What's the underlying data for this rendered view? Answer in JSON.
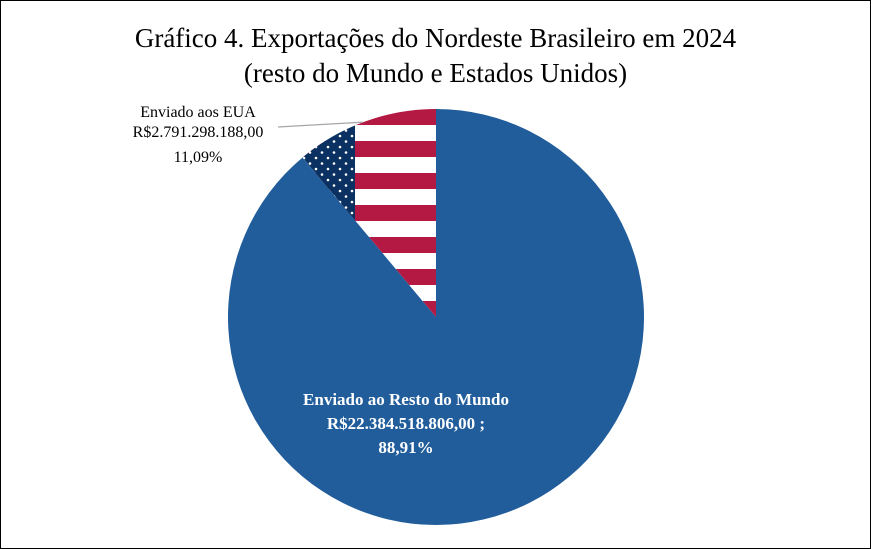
{
  "chart_data": {
    "type": "pie",
    "title": "Gráfico 4. Exportações do Nordeste Brasileiro em 2024",
    "subtitle": "(resto do Mundo e Estados Unidos)",
    "slices": [
      {
        "label_lines": [
          "Enviado ao Resto do Mundo",
          "R$22.384.518.806,00 ;",
          "88,91%"
        ],
        "value": 22384518806.0,
        "percent": 88.91,
        "color": "#215D9B",
        "pattern": "solid"
      },
      {
        "label_lines": [
          "Enviado aos EUA",
          "R$2.791.298.188,00",
          "11,09%"
        ],
        "value": 2791298188.0,
        "percent": 11.09,
        "color": "#B31942",
        "pattern": "us-flag"
      }
    ],
    "colors": {
      "stripe_red": "#B31942",
      "stripe_white": "#FFFFFF",
      "canton_blue": "#0A3161",
      "leader_line": "#A6A6A6"
    }
  }
}
